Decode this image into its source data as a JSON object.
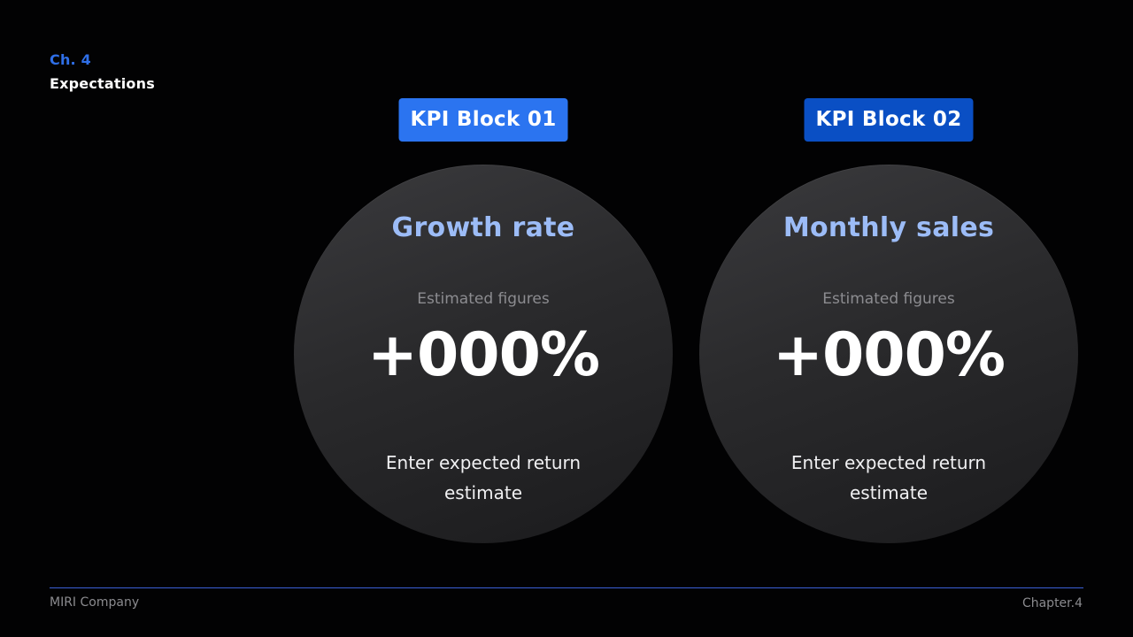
{
  "header": {
    "chapter_label": "Ch. 4",
    "section_title": "Expectations"
  },
  "kpi_blocks": [
    {
      "badge": "KPI Block 01",
      "title": "Growth rate",
      "subtitle": "Estimated figures",
      "value": "+000%",
      "description": "Enter expected return estimate",
      "badge_color": "#2b74f0"
    },
    {
      "badge": "KPI Block 02",
      "title": "Monthly sales",
      "subtitle": "Estimated figures",
      "value": "+000%",
      "description": "Enter expected return estimate",
      "badge_color": "#0a4fc4"
    }
  ],
  "footer": {
    "company": "MIRI Company",
    "chapter": "Chapter.4"
  },
  "colors": {
    "background": "#020203",
    "accent": "#2f6fe8",
    "kpi_title": "#9cbcf7",
    "footer_rule": "#3b5fd6"
  }
}
